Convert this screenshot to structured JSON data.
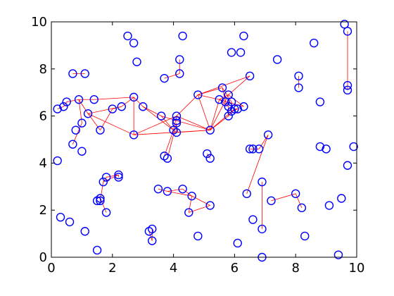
{
  "chart_data": {
    "type": "scatter",
    "title": "",
    "xlabel": "",
    "ylabel": "",
    "xlim": [
      0,
      10
    ],
    "ylim": [
      0,
      10
    ],
    "xticks": [
      "0",
      "2",
      "4",
      "6",
      "8",
      "10"
    ],
    "yticks": [
      "0",
      "2",
      "4",
      "6",
      "8",
      "10"
    ],
    "grid": false,
    "legend": "none",
    "colors": {
      "points": "#0000ff",
      "edges": "#ff0000",
      "axes": "#000000"
    },
    "points": [
      [
        0.2,
        6.3
      ],
      [
        0.4,
        6.4
      ],
      [
        0.5,
        6.6
      ],
      [
        0.2,
        4.1
      ],
      [
        0.3,
        1.7
      ],
      [
        0.6,
        1.5
      ],
      [
        0.7,
        4.8
      ],
      [
        0.8,
        5.4
      ],
      [
        0.9,
        6.7
      ],
      [
        1.0,
        5.7
      ],
      [
        1.0,
        4.5
      ],
      [
        1.1,
        1.1
      ],
      [
        0.7,
        7.8
      ],
      [
        1.1,
        7.8
      ],
      [
        1.2,
        6.1
      ],
      [
        1.4,
        6.7
      ],
      [
        1.5,
        2.4
      ],
      [
        1.5,
        0.3
      ],
      [
        1.6,
        5.4
      ],
      [
        1.6,
        2.4
      ],
      [
        1.6,
        2.5
      ],
      [
        1.7,
        3.2
      ],
      [
        1.8,
        3.4
      ],
      [
        1.8,
        1.9
      ],
      [
        2.0,
        6.3
      ],
      [
        2.2,
        3.5
      ],
      [
        2.2,
        3.4
      ],
      [
        2.3,
        6.4
      ],
      [
        2.5,
        9.4
      ],
      [
        2.7,
        9.1
      ],
      [
        2.7,
        6.8
      ],
      [
        2.7,
        5.2
      ],
      [
        2.8,
        8.3
      ],
      [
        3.0,
        6.4
      ],
      [
        3.2,
        1.1
      ],
      [
        3.3,
        1.2
      ],
      [
        3.3,
        0.7
      ],
      [
        3.5,
        2.9
      ],
      [
        3.6,
        6.0
      ],
      [
        3.7,
        7.6
      ],
      [
        3.7,
        4.3
      ],
      [
        3.8,
        4.2
      ],
      [
        3.8,
        2.8
      ],
      [
        4.0,
        5.4
      ],
      [
        4.1,
        5.7
      ],
      [
        4.1,
        5.3
      ],
      [
        4.1,
        6.0
      ],
      [
        4.1,
        5.8
      ],
      [
        4.2,
        7.8
      ],
      [
        4.2,
        8.4
      ],
      [
        4.3,
        9.4
      ],
      [
        4.3,
        2.9
      ],
      [
        4.5,
        1.9
      ],
      [
        4.6,
        2.6
      ],
      [
        4.8,
        6.9
      ],
      [
        4.8,
        0.9
      ],
      [
        5.1,
        4.4
      ],
      [
        5.2,
        4.2
      ],
      [
        5.2,
        5.4
      ],
      [
        5.2,
        2.2
      ],
      [
        5.5,
        6.7
      ],
      [
        5.6,
        7.2
      ],
      [
        5.7,
        6.6
      ],
      [
        5.8,
        6.9
      ],
      [
        5.8,
        6.4
      ],
      [
        5.8,
        6.0
      ],
      [
        5.9,
        6.6
      ],
      [
        5.9,
        6.2
      ],
      [
        5.9,
        8.7
      ],
      [
        6.0,
        6.3
      ],
      [
        6.1,
        6.3
      ],
      [
        6.1,
        0.6
      ],
      [
        6.2,
        8.7
      ],
      [
        6.3,
        9.4
      ],
      [
        6.3,
        6.4
      ],
      [
        6.4,
        2.7
      ],
      [
        6.5,
        7.7
      ],
      [
        6.5,
        4.6
      ],
      [
        6.6,
        4.6
      ],
      [
        6.6,
        1.6
      ],
      [
        6.8,
        4.6
      ],
      [
        6.9,
        3.2
      ],
      [
        6.9,
        1.2
      ],
      [
        6.9,
        0.0
      ],
      [
        7.1,
        5.2
      ],
      [
        7.2,
        2.4
      ],
      [
        7.4,
        8.4
      ],
      [
        8.0,
        2.7
      ],
      [
        8.1,
        7.7
      ],
      [
        8.1,
        7.2
      ],
      [
        8.2,
        2.1
      ],
      [
        8.3,
        0.9
      ],
      [
        8.6,
        9.1
      ],
      [
        8.8,
        6.6
      ],
      [
        8.8,
        4.7
      ],
      [
        9.0,
        4.6
      ],
      [
        9.1,
        2.2
      ],
      [
        9.4,
        0.1
      ],
      [
        9.5,
        2.5
      ],
      [
        9.6,
        9.9
      ],
      [
        9.7,
        9.6
      ],
      [
        9.7,
        7.3
      ],
      [
        9.7,
        7.1
      ],
      [
        9.7,
        3.9
      ],
      [
        9.9,
        4.7
      ]
    ],
    "edges": [
      [
        0,
        1
      ],
      [
        1,
        2
      ],
      [
        2,
        8
      ],
      [
        8,
        15
      ],
      [
        15,
        30
      ],
      [
        30,
        33
      ],
      [
        33,
        38
      ],
      [
        38,
        43
      ],
      [
        43,
        46
      ],
      [
        46,
        58
      ],
      [
        58,
        60
      ],
      [
        60,
        63
      ],
      [
        63,
        76
      ],
      [
        8,
        14
      ],
      [
        14,
        18
      ],
      [
        18,
        24
      ],
      [
        24,
        27
      ],
      [
        27,
        30
      ],
      [
        14,
        27
      ],
      [
        6,
        9
      ],
      [
        9,
        8
      ],
      [
        14,
        31
      ],
      [
        31,
        30
      ],
      [
        31,
        46
      ],
      [
        31,
        58
      ],
      [
        33,
        43
      ],
      [
        38,
        47
      ],
      [
        40,
        43
      ],
      [
        41,
        44
      ],
      [
        44,
        45
      ],
      [
        43,
        45
      ],
      [
        45,
        58
      ],
      [
        47,
        58
      ],
      [
        46,
        54
      ],
      [
        54,
        58
      ],
      [
        54,
        60
      ],
      [
        54,
        61
      ],
      [
        61,
        62
      ],
      [
        62,
        64
      ],
      [
        64,
        65
      ],
      [
        65,
        69
      ],
      [
        69,
        70
      ],
      [
        60,
        64
      ],
      [
        58,
        63
      ],
      [
        58,
        65
      ],
      [
        58,
        69
      ],
      [
        60,
        74
      ],
      [
        54,
        76
      ],
      [
        63,
        74
      ],
      [
        61,
        66
      ],
      [
        66,
        67
      ],
      [
        67,
        70
      ],
      [
        12,
        13
      ],
      [
        48,
        49
      ],
      [
        39,
        48
      ],
      [
        19,
        21
      ],
      [
        21,
        22
      ],
      [
        22,
        25
      ],
      [
        25,
        26
      ],
      [
        20,
        23
      ],
      [
        19,
        20
      ],
      [
        21,
        25
      ],
      [
        37,
        42
      ],
      [
        42,
        51
      ],
      [
        51,
        53
      ],
      [
        53,
        59
      ],
      [
        52,
        53
      ],
      [
        52,
        59
      ],
      [
        42,
        53
      ],
      [
        34,
        36
      ],
      [
        35,
        36
      ],
      [
        75,
        84
      ],
      [
        77,
        78
      ],
      [
        78,
        80
      ],
      [
        80,
        84
      ],
      [
        81,
        82
      ],
      [
        85,
        87
      ],
      [
        87,
        90
      ],
      [
        88,
        89
      ],
      [
        100,
        101
      ],
      [
        101,
        102
      ],
      [
        56,
        57
      ]
    ]
  }
}
